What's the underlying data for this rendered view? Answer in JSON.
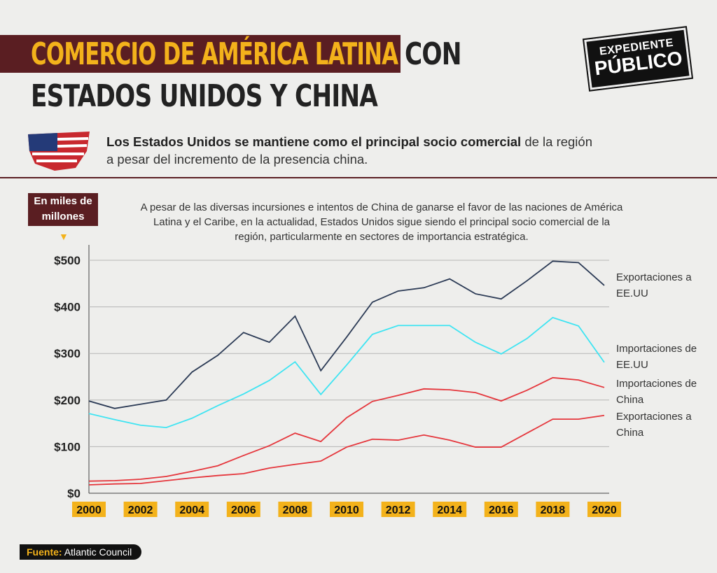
{
  "header": {
    "title_highlight": "COMERCIO DE AMÉRICA LATINA",
    "title_rest": "CON",
    "title_line2": "ESTADOS UNIDOS Y CHINA",
    "logo_line1": "EXPEDIENTE",
    "logo_line2": "PÚBLICO",
    "lead_bold": "Los Estados Unidos se mantiene como el principal socio comercial",
    "lead_rest": "de la región a pesar del incremento de la presencia china."
  },
  "chart_data": {
    "type": "line",
    "ylabel": "En miles de millones",
    "annotation": "A pesar de las diversas incursiones e intentos de China de ganarse el favor de las naciones de América Latina y el Caribe, en la actualidad, Estados Unidos sigue siendo el principal socio comercial de la región, particularmente en sectores de importancia estratégica.",
    "x": [
      2000,
      2001,
      2002,
      2003,
      2004,
      2005,
      2006,
      2007,
      2008,
      2009,
      2010,
      2011,
      2012,
      2013,
      2014,
      2015,
      2016,
      2017,
      2018,
      2019,
      2020
    ],
    "series": [
      {
        "name": "Exportaciones a EE.UU",
        "color": "#2b3a55",
        "values": [
          198,
          182,
          191,
          200,
          260,
          296,
          345,
          324,
          380,
          263,
          335,
          410,
          434,
          441,
          460,
          428,
          417,
          456,
          498,
          495,
          446
        ]
      },
      {
        "name": "Importaciones de EE.UU",
        "color": "#3ee4f2",
        "values": [
          171,
          158,
          146,
          141,
          161,
          188,
          213,
          242,
          282,
          212,
          275,
          341,
          360,
          360,
          360,
          324,
          299,
          332,
          377,
          359,
          281
        ]
      },
      {
        "name": "Importaciones de China",
        "color": "#e5363c",
        "values": [
          26,
          27,
          30,
          36,
          47,
          59,
          81,
          102,
          129,
          111,
          162,
          197,
          210,
          224,
          222,
          216,
          198,
          221,
          248,
          243,
          227
        ]
      },
      {
        "name": "Exportaciones a China",
        "color": "#e5363c",
        "values": [
          18,
          20,
          21,
          27,
          33,
          38,
          42,
          54,
          62,
          69,
          99,
          116,
          114,
          125,
          114,
          99,
          99,
          129,
          159,
          159,
          167
        ]
      }
    ],
    "xlim": [
      2000,
      2020
    ],
    "ylim": [
      0,
      500
    ],
    "xticks": [
      2000,
      2002,
      2004,
      2006,
      2008,
      2010,
      2012,
      2014,
      2016,
      2018,
      2020
    ],
    "yticks": [
      {
        "value": 0,
        "label": "$0"
      },
      {
        "value": 100,
        "label": "$100"
      },
      {
        "value": 200,
        "label": "$200"
      },
      {
        "value": 300,
        "label": "$300"
      },
      {
        "value": 400,
        "label": "$400"
      },
      {
        "value": 500,
        "label": "$500"
      }
    ],
    "grid": true
  },
  "footer": {
    "source_label": "Fuente:",
    "source": "Atlantic Council"
  }
}
